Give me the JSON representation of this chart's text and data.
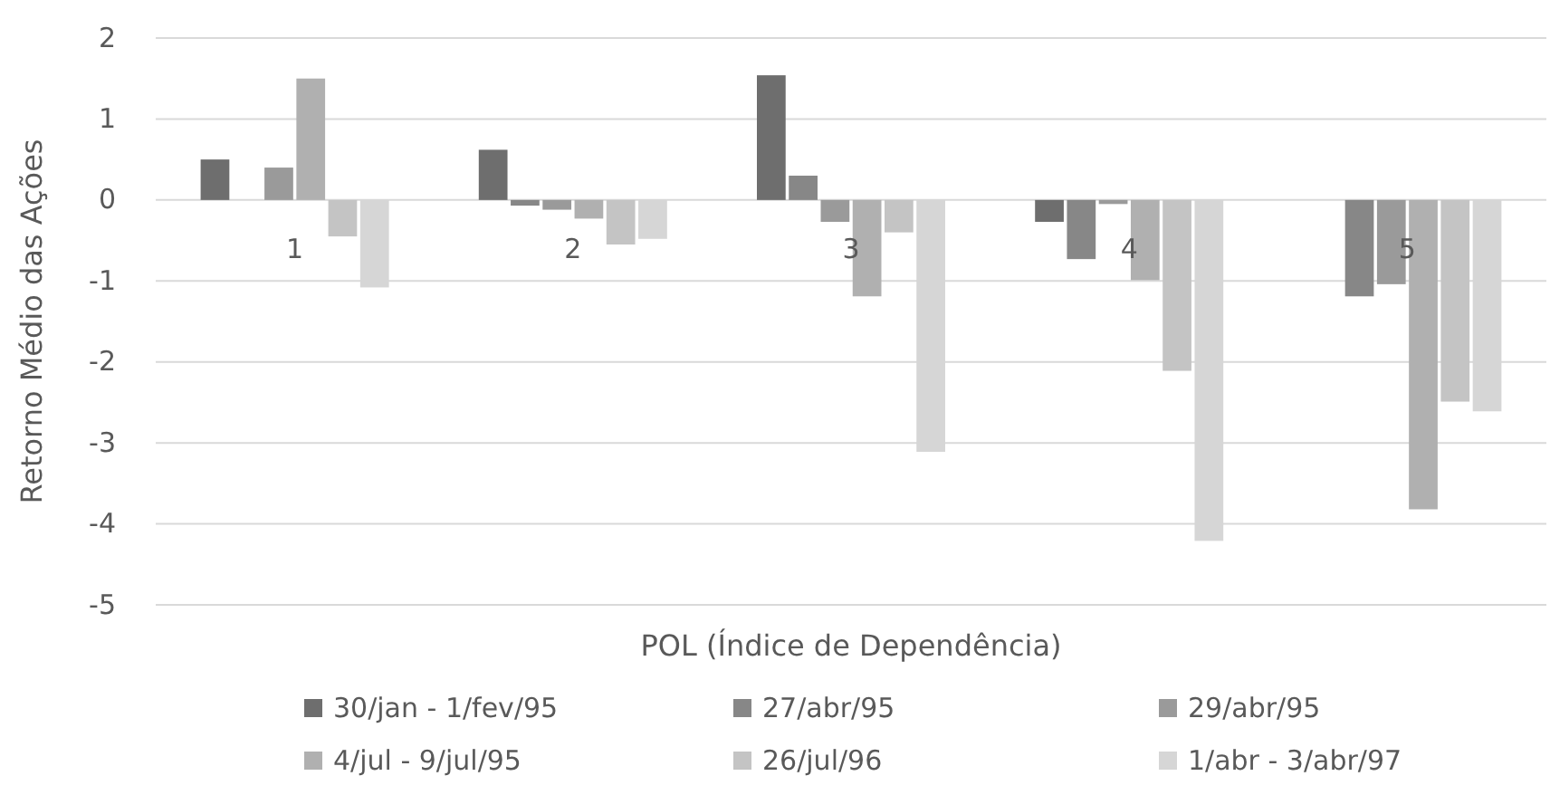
{
  "chart_data": {
    "type": "bar",
    "xlabel": "POL (Índice de Dependência)",
    "ylabel": "Retorno Médio das Ações",
    "categories": [
      "1",
      "2",
      "3",
      "4",
      "5"
    ],
    "series": [
      {
        "name": "30/jan - 1/fev/95",
        "color": "#6e6e6e",
        "values": [
          0.5,
          0.62,
          1.54,
          -0.27,
          null
        ]
      },
      {
        "name": "27/abr/95",
        "color": "#878787",
        "values": [
          null,
          -0.07,
          0.3,
          -0.73,
          -1.19
        ]
      },
      {
        "name": "29/abr/95",
        "color": "#9a9a9a",
        "values": [
          0.4,
          -0.12,
          -0.27,
          -0.05,
          -1.04
        ]
      },
      {
        "name": "4/jul - 9/jul/95",
        "color": "#b0b0b0",
        "values": [
          1.5,
          -0.23,
          -1.19,
          -0.99,
          -3.82
        ]
      },
      {
        "name": "26/jul/96",
        "color": "#c4c4c4",
        "values": [
          -0.45,
          -0.55,
          -0.4,
          -2.11,
          -2.49
        ]
      },
      {
        "name": "1/abr - 3/abr/97",
        "color": "#d6d6d6",
        "values": [
          -1.08,
          -0.48,
          -3.11,
          -4.21,
          -2.61
        ]
      }
    ],
    "ylim": [
      -5,
      2
    ],
    "yticks": [
      -5,
      -4,
      -3,
      -2,
      -1,
      0,
      1,
      2
    ],
    "grid": "y",
    "legend": "bottom"
  }
}
